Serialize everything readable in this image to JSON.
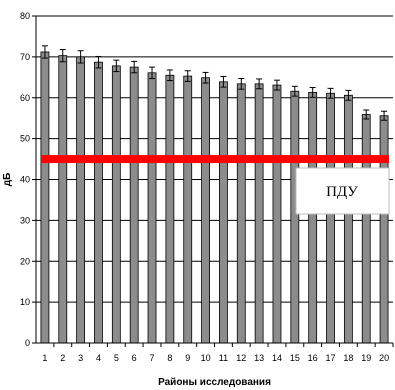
{
  "chart_data": {
    "type": "bar",
    "title": "",
    "xlabel": "Районы исследования",
    "ylabel": "дБ",
    "ylim": [
      0,
      80
    ],
    "yticks": [
      0,
      10,
      20,
      30,
      40,
      50,
      60,
      70,
      80
    ],
    "grid": true,
    "categories": [
      "1",
      "2",
      "3",
      "4",
      "5",
      "6",
      "7",
      "8",
      "9",
      "10",
      "11",
      "12",
      "13",
      "14",
      "15",
      "16",
      "17",
      "18",
      "19",
      "20"
    ],
    "values": [
      71.2,
      70.3,
      70.0,
      68.7,
      67.8,
      67.5,
      66.1,
      65.5,
      65.3,
      64.9,
      63.9,
      63.4,
      63.4,
      63.1,
      61.6,
      61.3,
      61.1,
      60.6,
      55.9,
      55.6
    ],
    "error": [
      1.5,
      1.5,
      1.5,
      1.4,
      1.4,
      1.4,
      1.4,
      1.3,
      1.3,
      1.3,
      1.3,
      1.3,
      1.2,
      1.2,
      1.2,
      1.2,
      1.2,
      1.2,
      1.1,
      1.1
    ],
    "bar_color": "#8c8c8c",
    "reference_line": {
      "label": "ПДУ",
      "value": 45,
      "color": "#ff0000"
    }
  }
}
